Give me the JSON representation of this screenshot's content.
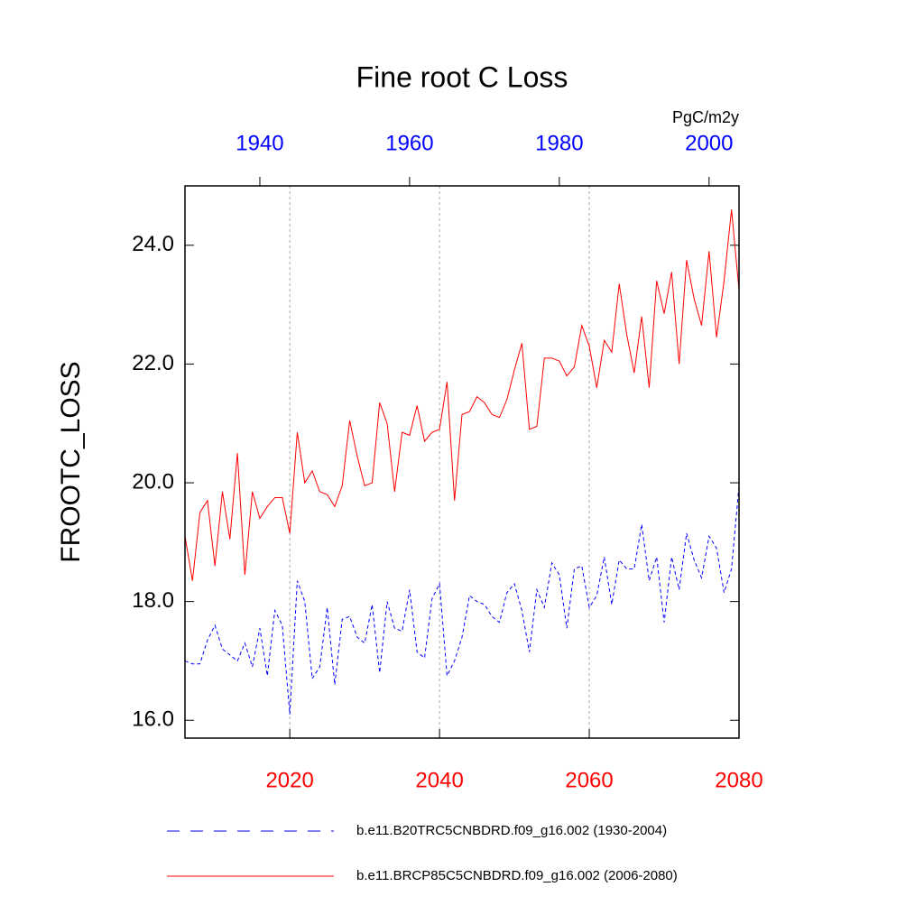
{
  "chart_data": {
    "type": "line",
    "title": "Fine root C Loss",
    "ylabel": "FROOTC_LOSS",
    "units": "PgC/m2y",
    "ylim": [
      15.7,
      25.0
    ],
    "yticks": [
      {
        "value": 16,
        "label": "16.0"
      },
      {
        "value": 18,
        "label": "18.0"
      },
      {
        "value": 20,
        "label": "20.0"
      },
      {
        "value": 22,
        "label": "22.0"
      },
      {
        "value": 24,
        "label": "24.0"
      }
    ],
    "xlim": [
      2006,
      2080
    ],
    "xticks": [
      2020,
      2040,
      2060,
      2080
    ],
    "x2lim": [
      1930,
      2004
    ],
    "x2ticks": [
      1940,
      1960,
      1980,
      2000
    ],
    "grid": true,
    "series": [
      {
        "name": "b.e11.B20TRC5CNBDRD.f09_g16.002 (1930-2004)",
        "color": "#0000ff",
        "line_style": "dashed",
        "axis": "x2",
        "x": [
          1930,
          1931,
          1932,
          1933,
          1934,
          1935,
          1936,
          1937,
          1938,
          1939,
          1940,
          1941,
          1942,
          1943,
          1944,
          1945,
          1946,
          1947,
          1948,
          1949,
          1950,
          1951,
          1952,
          1953,
          1954,
          1955,
          1956,
          1957,
          1958,
          1959,
          1960,
          1961,
          1962,
          1963,
          1964,
          1965,
          1966,
          1967,
          1968,
          1969,
          1970,
          1971,
          1972,
          1973,
          1974,
          1975,
          1976,
          1977,
          1978,
          1979,
          1980,
          1981,
          1982,
          1983,
          1984,
          1985,
          1986,
          1987,
          1988,
          1989,
          1990,
          1991,
          1992,
          1993,
          1994,
          1995,
          1996,
          1997,
          1998,
          1999,
          2000,
          2001,
          2002,
          2003,
          2004
        ],
        "values": [
          17.0,
          16.95,
          16.95,
          17.35,
          17.6,
          17.2,
          17.1,
          17.0,
          17.3,
          16.9,
          17.55,
          16.75,
          17.85,
          17.6,
          16.1,
          18.35,
          18.0,
          16.7,
          16.9,
          17.9,
          16.6,
          17.7,
          17.75,
          17.4,
          17.3,
          17.95,
          16.8,
          18.0,
          17.55,
          17.5,
          18.2,
          17.15,
          17.05,
          18.05,
          18.3,
          16.75,
          17.0,
          17.4,
          18.1,
          18.0,
          17.95,
          17.75,
          17.65,
          18.15,
          18.3,
          17.85,
          17.15,
          18.2,
          17.9,
          18.65,
          18.45,
          17.55,
          18.55,
          18.6,
          17.9,
          18.1,
          18.75,
          17.95,
          18.7,
          18.55,
          18.55,
          19.3,
          18.35,
          18.75,
          17.65,
          18.75,
          18.2,
          19.15,
          18.7,
          18.4,
          19.1,
          18.9,
          18.15,
          18.55,
          19.95
        ]
      },
      {
        "name": "b.e11.BRCP85C5CNBDRD.f09_g16.002 (2006-2080)",
        "color": "#ff0000",
        "line_style": "solid",
        "axis": "x",
        "x": [
          2006,
          2007,
          2008,
          2009,
          2010,
          2011,
          2012,
          2013,
          2014,
          2015,
          2016,
          2017,
          2018,
          2019,
          2020,
          2021,
          2022,
          2023,
          2024,
          2025,
          2026,
          2027,
          2028,
          2029,
          2030,
          2031,
          2032,
          2033,
          2034,
          2035,
          2036,
          2037,
          2038,
          2039,
          2040,
          2041,
          2042,
          2043,
          2044,
          2045,
          2046,
          2047,
          2048,
          2049,
          2050,
          2051,
          2052,
          2053,
          2054,
          2055,
          2056,
          2057,
          2058,
          2059,
          2060,
          2061,
          2062,
          2063,
          2064,
          2065,
          2066,
          2067,
          2068,
          2069,
          2070,
          2071,
          2072,
          2073,
          2074,
          2075,
          2076,
          2077,
          2078,
          2079,
          2080
        ],
        "values": [
          19.1,
          18.35,
          19.5,
          19.7,
          18.6,
          19.85,
          19.05,
          20.5,
          18.45,
          19.85,
          19.4,
          19.6,
          19.75,
          19.75,
          19.15,
          20.85,
          20.0,
          20.2,
          19.85,
          19.8,
          19.6,
          19.95,
          21.05,
          20.45,
          19.95,
          20.0,
          21.35,
          21.0,
          19.85,
          20.85,
          20.8,
          21.3,
          20.7,
          20.85,
          20.9,
          21.7,
          19.7,
          21.15,
          21.2,
          21.45,
          21.35,
          21.15,
          21.1,
          21.4,
          21.9,
          22.35,
          20.9,
          20.95,
          22.1,
          22.1,
          22.05,
          21.8,
          21.95,
          22.65,
          22.3,
          21.6,
          22.4,
          22.2,
          23.35,
          22.5,
          21.85,
          22.8,
          21.6,
          23.4,
          22.85,
          23.55,
          22.0,
          23.75,
          23.1,
          22.65,
          23.9,
          22.45,
          23.4,
          24.6,
          23.25
        ]
      }
    ]
  }
}
